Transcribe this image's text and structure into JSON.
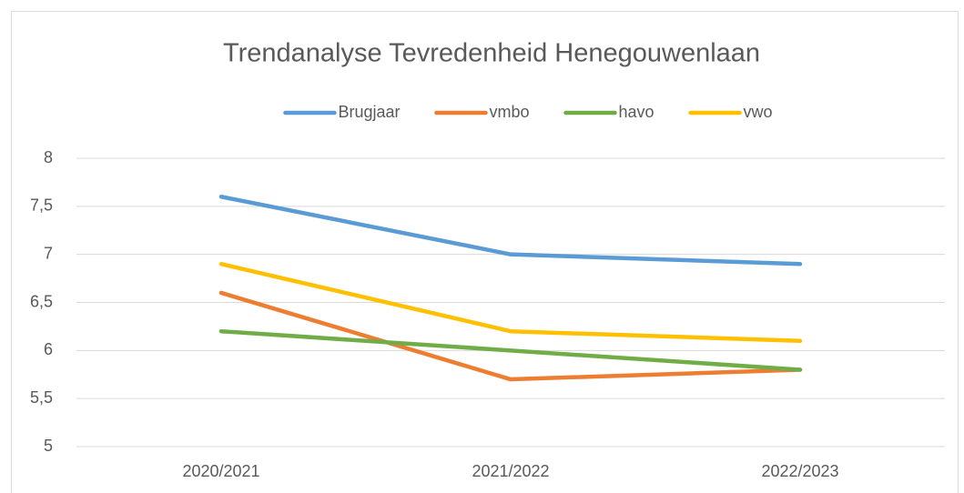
{
  "chart_data": {
    "type": "line",
    "title": "Trendanalyse Tevredenheid Henegouwenlaan",
    "categories": [
      "2020/2021",
      "2021/2022",
      "2022/2023"
    ],
    "series": [
      {
        "name": "Brugjaar",
        "color": "#5b9bd5",
        "values": [
          7.6,
          7.0,
          6.9
        ]
      },
      {
        "name": "vmbo",
        "color": "#ed7d31",
        "values": [
          6.6,
          5.7,
          5.8
        ]
      },
      {
        "name": "havo",
        "color": "#70ad47",
        "values": [
          6.2,
          6.0,
          5.8
        ]
      },
      {
        "name": "vwo",
        "color": "#ffc000",
        "values": [
          6.9,
          6.2,
          6.1
        ]
      }
    ],
    "ylim": [
      5,
      8
    ],
    "yticks": [
      5,
      {
        "value": 5.5,
        "label": "5,5"
      },
      6,
      {
        "value": 6.5,
        "label": "6,5"
      },
      7,
      {
        "value": 7.5,
        "label": "7,5"
      },
      8
    ],
    "grid": true,
    "legend": "top"
  }
}
